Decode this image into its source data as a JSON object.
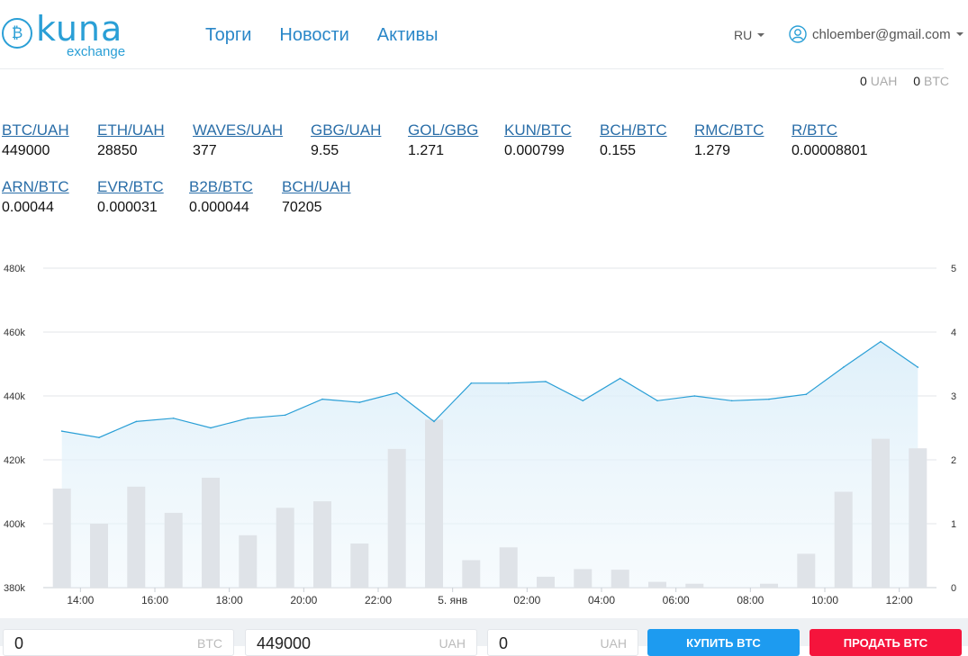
{
  "header": {
    "logo": {
      "word": "kuna",
      "sub": "exchange"
    },
    "nav": [
      "Торги",
      "Новости",
      "Активы"
    ],
    "lang": "RU",
    "user_email": "chloember@gmail.com"
  },
  "balances": [
    {
      "amount": "0",
      "currency": "UAH"
    },
    {
      "amount": "0",
      "currency": "BTC"
    }
  ],
  "pairs_row1": [
    {
      "name": "BTC/UAH",
      "price": "449000"
    },
    {
      "name": "ETH/UAH",
      "price": "28850"
    },
    {
      "name": "WAVES/UAH",
      "price": "377"
    },
    {
      "name": "GBG/UAH",
      "price": "9.55"
    },
    {
      "name": "GOL/GBG",
      "price": "1.271"
    },
    {
      "name": "KUN/BTC",
      "price": "0.000799"
    },
    {
      "name": "BCH/BTC",
      "price": "0.155"
    },
    {
      "name": "RMC/BTC",
      "price": "1.279"
    },
    {
      "name": "R/BTC",
      "price": "0.00008801"
    }
  ],
  "pairs_row2": [
    {
      "name": "ARN/BTC",
      "price": "0.00044"
    },
    {
      "name": "EVR/BTC",
      "price": "0.000031"
    },
    {
      "name": "B2B/BTC",
      "price": "0.000044"
    },
    {
      "name": "BCH/UAH",
      "price": "70205"
    }
  ],
  "chart_data": {
    "type": "line",
    "x": [
      "13:00",
      "14:00",
      "15:00",
      "16:00",
      "17:00",
      "18:00",
      "19:00",
      "20:00",
      "21:00",
      "22:00",
      "23:00",
      "5. янв",
      "01:00",
      "02:00",
      "03:00",
      "04:00",
      "05:00",
      "06:00",
      "07:00",
      "08:00",
      "09:00",
      "10:00",
      "11:00",
      "12:00"
    ],
    "x_tick_labels": [
      "14:00",
      "16:00",
      "18:00",
      "20:00",
      "22:00",
      "5. янв",
      "02:00",
      "04:00",
      "06:00",
      "08:00",
      "10:00",
      "12:00"
    ],
    "series": [
      {
        "axis": "left",
        "type": "area",
        "color": "#2a9fd6",
        "values": [
          429000,
          427000,
          432000,
          433000,
          430000,
          433000,
          434000,
          439000,
          438000,
          441000,
          432000,
          444000,
          444000,
          444500,
          438500,
          445500,
          438500,
          440000,
          438500,
          439000,
          440500,
          449000,
          457000,
          449000
        ]
      },
      {
        "axis": "right",
        "type": "bar",
        "color": "#dfe3e8",
        "values": [
          1.55,
          1.0,
          1.58,
          1.17,
          1.72,
          0.82,
          1.25,
          1.35,
          0.69,
          2.17,
          2.63,
          0.43,
          0.63,
          0.17,
          0.29,
          0.28,
          0.09,
          0.06,
          0.0,
          0.06,
          0.53,
          1.5,
          2.33,
          2.18
        ]
      }
    ],
    "left_axis": {
      "min": 380000,
      "max": 480000,
      "ticks": [
        "380k",
        "400k",
        "420k",
        "440k",
        "460k",
        "480k"
      ]
    },
    "right_axis": {
      "min": 0,
      "max": 5,
      "ticks": [
        "0",
        "1",
        "2",
        "3",
        "4",
        "5"
      ]
    },
    "grid": true
  },
  "order_form": {
    "amount_value": "0",
    "amount_unit": "BTC",
    "price_value": "449000",
    "price_unit": "UAH",
    "total_value": "0",
    "total_unit": "UAH",
    "buy_label": "КУПИТЬ BTC",
    "sell_label": "ПРОДАТЬ BTC",
    "buy_color": "#1d9bf0",
    "sell_color": "#f5143c"
  }
}
